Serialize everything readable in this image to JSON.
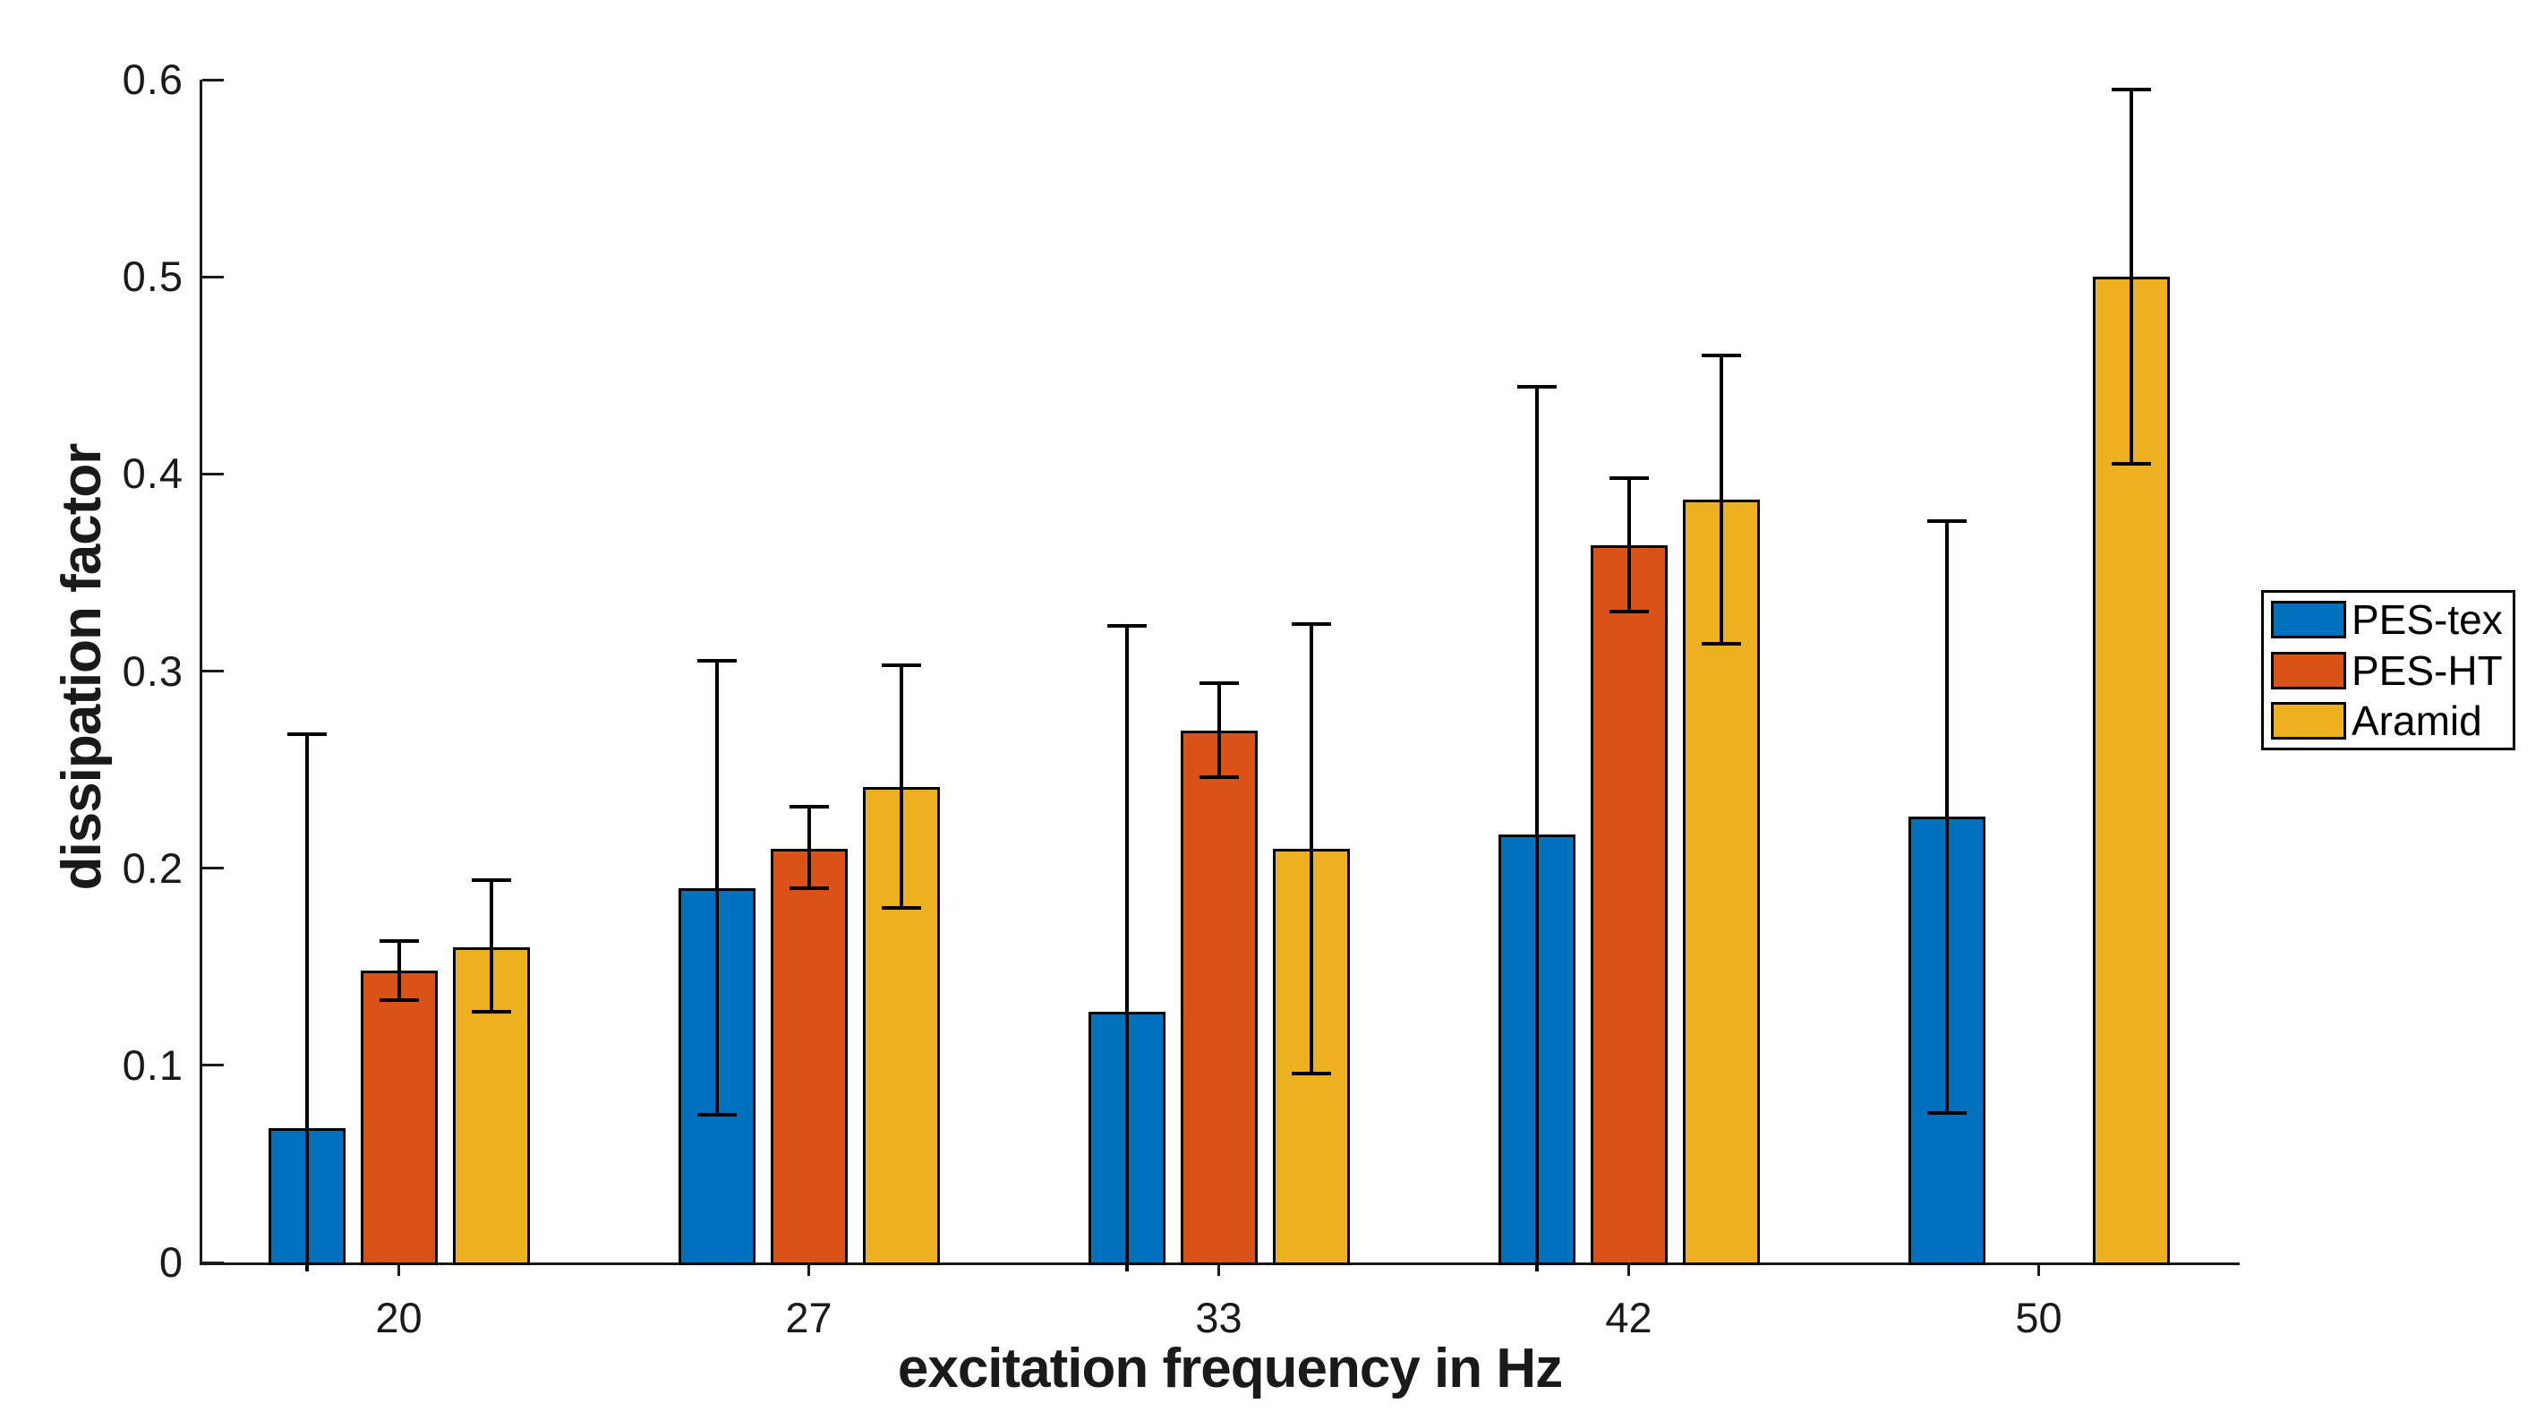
{
  "chart_data": {
    "type": "bar",
    "title": "",
    "xlabel": "excitation frequency in Hz",
    "ylabel": "dissipation factor",
    "categories": [
      "20",
      "27",
      "33",
      "42",
      "50"
    ],
    "y_ticks": [
      "0",
      "0.1",
      "0.2",
      "0.3",
      "0.4",
      "0.5",
      "0.6"
    ],
    "ylim": [
      0,
      0.6
    ],
    "grid": false,
    "legend_position": "right-outside",
    "bar_edge_color": "#000000",
    "error_bar_color": "#000000",
    "axis_color": "#1a1a1a",
    "series": [
      {
        "name": "PES-tex",
        "color": "#0072BD",
        "values": [
          0.068,
          0.19,
          0.127,
          0.217,
          0.226
        ],
        "error_high": [
          0.268,
          0.305,
          0.323,
          0.444,
          0.376
        ],
        "error_low": [
          null,
          0.075,
          null,
          null,
          0.076
        ]
      },
      {
        "name": "PES-HT",
        "color": "#D95319",
        "values": [
          0.148,
          0.21,
          0.27,
          0.364,
          null
        ],
        "error_high": [
          0.163,
          0.231,
          0.294,
          0.398,
          null
        ],
        "error_low": [
          0.133,
          0.19,
          0.246,
          0.33,
          null
        ]
      },
      {
        "name": "Aramid",
        "color": "#EDB120",
        "values": [
          0.16,
          0.241,
          0.21,
          0.387,
          0.5
        ],
        "error_high": [
          0.194,
          0.303,
          0.324,
          0.46,
          0.595
        ],
        "error_low": [
          0.127,
          0.18,
          0.096,
          0.314,
          0.405
        ]
      }
    ]
  }
}
